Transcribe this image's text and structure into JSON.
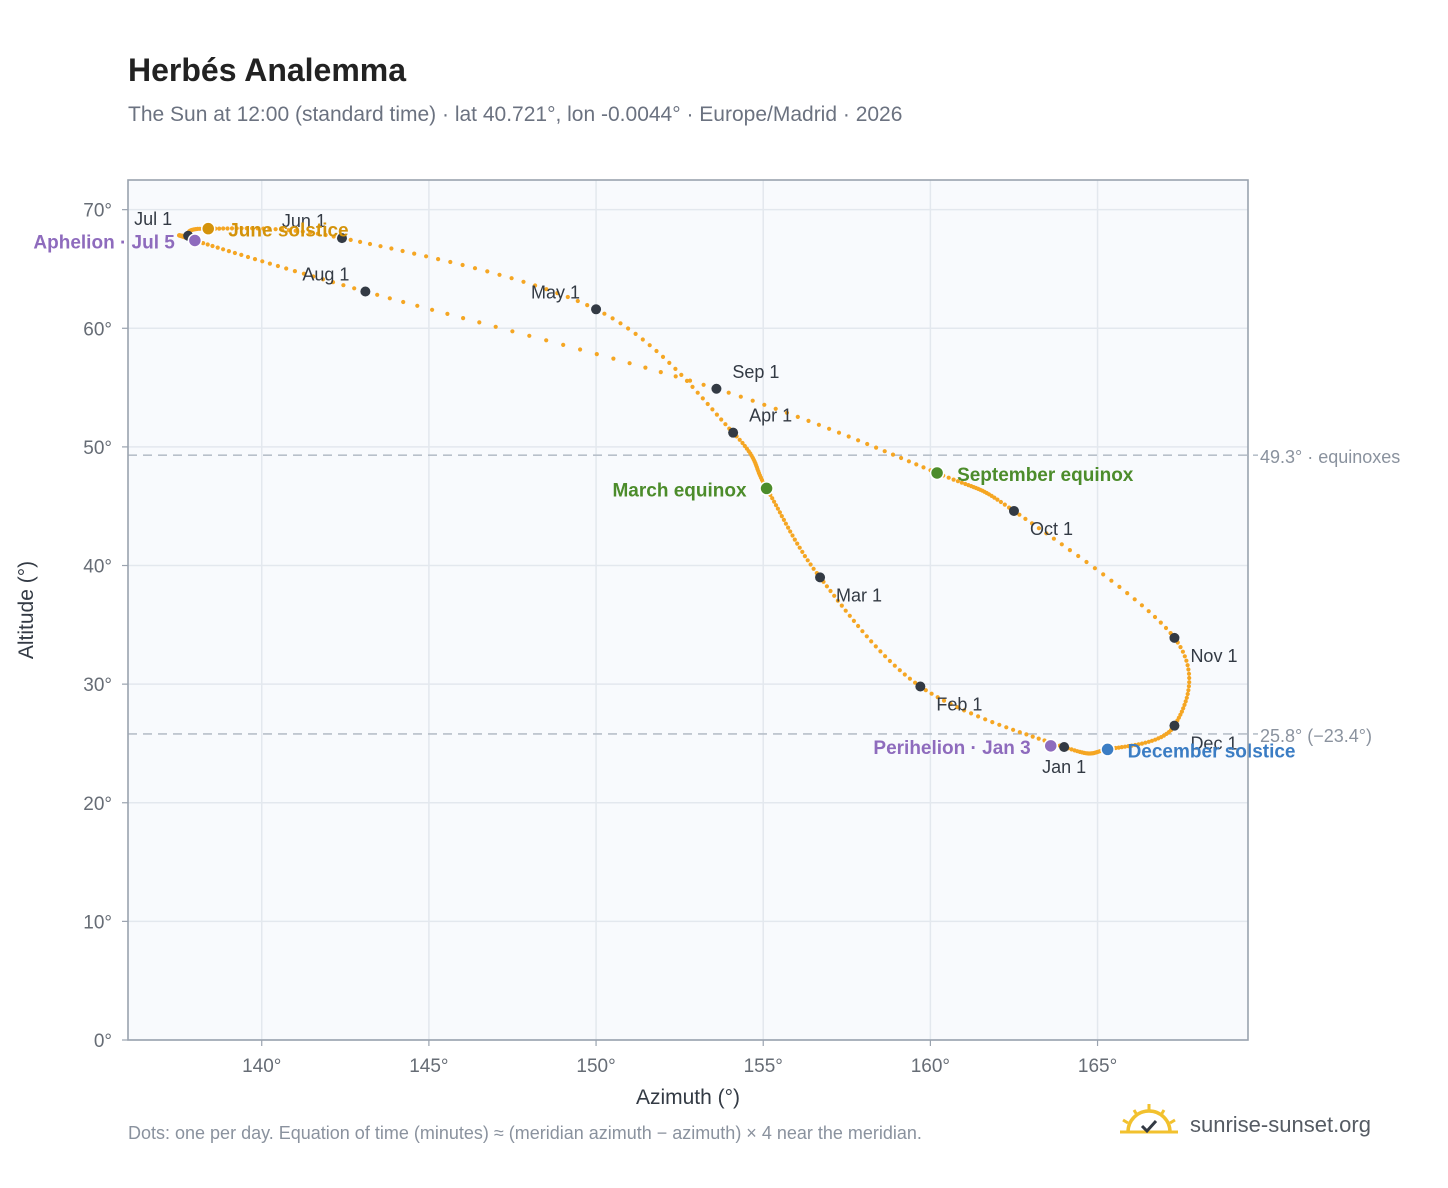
{
  "header": {
    "title": "Herbés Analemma",
    "subtitle": "The Sun at 12:00 (standard time) · lat 40.721°, lon -0.0044° · Europe/Madrid · 2026"
  },
  "footer": {
    "note": "Dots: one per day. Equation of time (minutes) ≈ (meridian azimuth − azimuth) × 4 near the meridian.",
    "brand": "sunrise-sunset.org"
  },
  "chart_data": {
    "type": "scatter",
    "xlabel": "Azimuth (°)",
    "ylabel": "Altitude (°)",
    "xlim": [
      136,
      169.5
    ],
    "ylim": [
      0,
      72.5
    ],
    "x_ticks": [
      140,
      145,
      150,
      155,
      160,
      165
    ],
    "x_tick_labels": [
      "140°",
      "145°",
      "150°",
      "155°",
      "160°",
      "165°"
    ],
    "y_ticks": [
      0,
      10,
      20,
      30,
      40,
      50,
      60,
      70
    ],
    "y_tick_labels": [
      "0°",
      "10°",
      "20°",
      "30°",
      "40°",
      "50°",
      "60°",
      "70°"
    ],
    "grid": true,
    "colors": {
      "path": "#f5a623",
      "month": "#333a44",
      "solstice_june": "#d4930b",
      "solstice_december": "#3b7dc4",
      "equinox": "#4c8c2b",
      "apsis": "#8e6bbd",
      "reference": "#b8c0ca"
    },
    "reference_lines": [
      {
        "y": 49.3,
        "label": "49.3° · equinoxes"
      },
      {
        "y": 25.8,
        "label": "25.8° (−23.4°)"
      }
    ],
    "path_anchors": [
      {
        "date": "Jan 1",
        "x": 164.0,
        "y": 24.7
      },
      {
        "date": "Feb 1",
        "x": 159.7,
        "y": 29.8
      },
      {
        "date": "Mar 1",
        "x": 156.7,
        "y": 39.0
      },
      {
        "date": "Mar 20",
        "x": 155.1,
        "y": 46.5
      },
      {
        "date": "Apr 1",
        "x": 154.1,
        "y": 51.2
      },
      {
        "date": "May 1",
        "x": 150.0,
        "y": 61.6
      },
      {
        "date": "Jun 1",
        "x": 142.4,
        "y": 67.6
      },
      {
        "date": "Jun 21",
        "x": 138.4,
        "y": 68.4
      },
      {
        "date": "Jul 1",
        "x": 137.8,
        "y": 67.8
      },
      {
        "date": "Jul 5",
        "x": 138.0,
        "y": 67.4
      },
      {
        "date": "Aug 1",
        "x": 143.1,
        "y": 63.1
      },
      {
        "date": "Sep 1",
        "x": 153.6,
        "y": 54.9
      },
      {
        "date": "Sep 23",
        "x": 160.2,
        "y": 47.8
      },
      {
        "date": "Oct 1",
        "x": 162.5,
        "y": 44.6
      },
      {
        "date": "Nov 1",
        "x": 167.3,
        "y": 33.9
      },
      {
        "date": "Dec 1",
        "x": 167.3,
        "y": 26.5
      },
      {
        "date": "Dec 21",
        "x": 165.3,
        "y": 24.5
      },
      {
        "date": "Jan 1",
        "x": 164.0,
        "y": 24.7
      }
    ],
    "months": [
      {
        "label": "Jan 1",
        "x": 164.0,
        "y": 24.7,
        "label_pos": "below"
      },
      {
        "label": "Feb 1",
        "x": 159.7,
        "y": 29.8,
        "label_pos": "below-right"
      },
      {
        "label": "Mar 1",
        "x": 156.7,
        "y": 39.0,
        "label_pos": "below-right"
      },
      {
        "label": "Apr 1",
        "x": 154.1,
        "y": 51.2,
        "label_pos": "above-right"
      },
      {
        "label": "May 1",
        "x": 150.0,
        "y": 61.6,
        "label_pos": "above-left"
      },
      {
        "label": "Jun 1",
        "x": 142.4,
        "y": 67.6,
        "label_pos": "above-left"
      },
      {
        "label": "Jul 1",
        "x": 137.8,
        "y": 67.8,
        "label_pos": "above-left"
      },
      {
        "label": "Aug 1",
        "x": 143.1,
        "y": 63.1,
        "label_pos": "above-left"
      },
      {
        "label": "Sep 1",
        "x": 153.6,
        "y": 54.9,
        "label_pos": "above-right"
      },
      {
        "label": "Oct 1",
        "x": 162.5,
        "y": 44.6,
        "label_pos": "below-right"
      },
      {
        "label": "Nov 1",
        "x": 167.3,
        "y": 33.9,
        "label_pos": "below-right"
      },
      {
        "label": "Dec 1",
        "x": 167.3,
        "y": 26.5,
        "label_pos": "below-right"
      }
    ],
    "events": [
      {
        "label": "June solstice",
        "x": 138.4,
        "y": 68.4,
        "color": "#d4930b",
        "label_pos": "right"
      },
      {
        "label": "Aphelion · Jul 5",
        "x": 138.0,
        "y": 67.4,
        "color": "#8e6bbd",
        "label_pos": "left"
      },
      {
        "label": "March equinox",
        "x": 155.1,
        "y": 46.5,
        "color": "#4c8c2b",
        "label_pos": "left"
      },
      {
        "label": "September equinox",
        "x": 160.2,
        "y": 47.8,
        "color": "#4c8c2b",
        "label_pos": "right"
      },
      {
        "label": "Perihelion · Jan 3",
        "x": 163.6,
        "y": 24.8,
        "color": "#8e6bbd",
        "label_pos": "left"
      },
      {
        "label": "December solstice",
        "x": 165.3,
        "y": 24.5,
        "color": "#3b7dc4",
        "label_pos": "right"
      }
    ]
  }
}
